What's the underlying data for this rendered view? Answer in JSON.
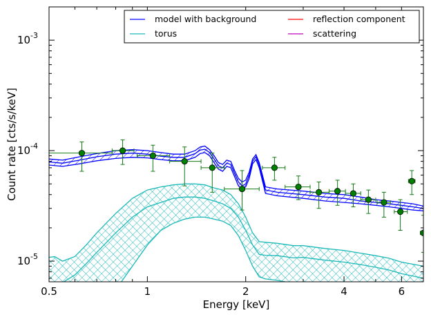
{
  "chart_data": {
    "type": "line",
    "xlabel": "Energy [keV]",
    "ylabel": "Count rate [cts/s/keV]",
    "x_scale": "log",
    "y_scale": "log",
    "xlim": [
      0.5,
      7.0
    ],
    "ylim": [
      6.5e-06,
      0.002
    ],
    "grid": false,
    "legend_position": "top-right",
    "x_ticks": [
      {
        "value": 0.5,
        "label": "0.5"
      },
      {
        "value": 1,
        "label": "1"
      },
      {
        "value": 2,
        "label": "2"
      },
      {
        "value": 4,
        "label": "4"
      },
      {
        "value": 6,
        "label": "6"
      }
    ],
    "y_ticks": [
      {
        "value": 1e-05,
        "base": "10",
        "exp": "-5"
      },
      {
        "value": 0.0001,
        "base": "10",
        "exp": "-4"
      },
      {
        "value": 0.001,
        "base": "10",
        "exp": "-3"
      }
    ],
    "series": [
      {
        "name": "model with background",
        "color": "#0000ff",
        "hatch": "diagonal",
        "x": [
          0.5,
          0.55,
          0.62,
          0.7,
          0.8,
          0.9,
          1.0,
          1.1,
          1.2,
          1.3,
          1.4,
          1.45,
          1.5,
          1.55,
          1.6,
          1.65,
          1.7,
          1.75,
          1.8,
          1.85,
          1.9,
          1.95,
          2.0,
          2.05,
          2.1,
          2.15,
          2.2,
          2.3,
          2.5,
          3.0,
          3.5,
          4.0,
          4.5,
          5.0,
          5.5,
          6.0,
          6.5,
          7.0
        ],
        "upper": [
          8.4e-05,
          8.2e-05,
          8.8e-05,
          9.4e-05,
          0.0001,
          0.000102,
          0.0001,
          9.6e-05,
          9.3e-05,
          9.3e-05,
          0.0001,
          0.000108,
          0.00011,
          0.000102,
          9e-05,
          7.8e-05,
          7.5e-05,
          8.2e-05,
          8e-05,
          6.6e-05,
          5.6e-05,
          5.2e-05,
          5.4e-05,
          6.4e-05,
          8.4e-05,
          9.2e-05,
          7.8e-05,
          4.7e-05,
          4.5e-05,
          4.3e-05,
          4.1e-05,
          4e-05,
          3.8e-05,
          3.6e-05,
          3.5e-05,
          3.4e-05,
          3.3e-05,
          3.15e-05
        ],
        "mid": [
          7.9e-05,
          7.7e-05,
          8.2e-05,
          8.8e-05,
          9.3e-05,
          9.5e-05,
          9.3e-05,
          8.9e-05,
          8.7e-05,
          8.7e-05,
          9.4e-05,
          0.000101,
          0.000103,
          9.6e-05,
          8.4e-05,
          7.3e-05,
          7e-05,
          7.7e-05,
          7.5e-05,
          6.2e-05,
          5.2e-05,
          4.8e-05,
          5e-05,
          6e-05,
          8e-05,
          8.8e-05,
          7.4e-05,
          4.4e-05,
          4.2e-05,
          4e-05,
          3.8e-05,
          3.7e-05,
          3.5e-05,
          3.4e-05,
          3.3e-05,
          3.2e-05,
          3.1e-05,
          3e-05
        ],
        "lower": [
          7.4e-05,
          7.2e-05,
          7.6e-05,
          8.1e-05,
          8.5e-05,
          8.7e-05,
          8.6e-05,
          8.3e-05,
          8.1e-05,
          8.1e-05,
          8.7e-05,
          9.4e-05,
          9.6e-05,
          9e-05,
          7.8e-05,
          6.8e-05,
          6.5e-05,
          7.2e-05,
          7e-05,
          5.8e-05,
          4.8e-05,
          4.5e-05,
          4.7e-05,
          5.6e-05,
          7.6e-05,
          8.3e-05,
          7e-05,
          4.1e-05,
          3.9e-05,
          3.7e-05,
          3.5e-05,
          3.4e-05,
          3.3e-05,
          3.2e-05,
          3.1e-05,
          3e-05,
          2.9e-05,
          2.85e-05
        ]
      },
      {
        "name": "torus",
        "color": "#1ab8b8",
        "hatch": "cross",
        "x": [
          0.5,
          0.52,
          0.55,
          0.6,
          0.65,
          0.7,
          0.8,
          0.9,
          1.0,
          1.1,
          1.2,
          1.3,
          1.4,
          1.5,
          1.6,
          1.7,
          1.8,
          1.9,
          2.0,
          2.1,
          2.2,
          2.3,
          2.5,
          2.8,
          3.0,
          3.5,
          4.0,
          4.5,
          5.0,
          5.5,
          6.0,
          7.0
        ],
        "upper": [
          1.08e-05,
          1.1e-05,
          1e-05,
          1.1e-05,
          1.4e-05,
          1.8e-05,
          2.7e-05,
          3.7e-05,
          4.4e-05,
          4.7e-05,
          4.9e-05,
          5e-05,
          5e-05,
          4.9e-05,
          4.6e-05,
          4.4e-05,
          4e-05,
          3.3e-05,
          2.5e-05,
          1.8e-05,
          1.5e-05,
          1.48e-05,
          1.45e-05,
          1.38e-05,
          1.38e-05,
          1.3e-05,
          1.25e-05,
          1.18e-05,
          1.12e-05,
          1.06e-05,
          9.8e-06,
          9e-06
        ],
        "mid": [
          6.2e-06,
          6.2e-06,
          6.4e-06,
          7.5e-06,
          9.5e-06,
          1.2e-05,
          1.8e-05,
          2.5e-05,
          3.1e-05,
          3.4e-05,
          3.7e-05,
          3.8e-05,
          3.8e-05,
          3.7e-05,
          3.5e-05,
          3.3e-05,
          3e-05,
          2.5e-05,
          1.9e-05,
          1.4e-05,
          1.15e-05,
          1.13e-05,
          1.12e-05,
          1.07e-05,
          1.08e-05,
          1.02e-05,
          9.8e-06,
          9.3e-06,
          8.8e-06,
          8.3e-06,
          7.7e-06,
          7e-06
        ],
        "lower": [
          3e-06,
          3e-06,
          3e-06,
          3e-06,
          3e-06,
          3.4e-06,
          5.5e-06,
          9e-06,
          1.4e-05,
          1.9e-05,
          2.2e-05,
          2.4e-05,
          2.5e-05,
          2.5e-05,
          2.4e-05,
          2.3e-05,
          2.1e-05,
          1.7e-05,
          1.25e-05,
          9e-06,
          7.2e-06,
          6.9e-06,
          6.7e-06,
          6.3e-06,
          6.4e-06,
          6e-06,
          5.8e-06,
          5.6e-06,
          5.4e-06,
          5.1e-06,
          4.8e-06,
          4.5e-06
        ]
      },
      {
        "name": "reflection component",
        "color": "#ff0000"
      },
      {
        "name": "scattering",
        "color": "#bf00bf"
      }
    ],
    "data_points": {
      "color": "#0f7a0f",
      "points": [
        {
          "x": 0.63,
          "y": 9.5e-05,
          "xlo": 0.5,
          "xhi": 0.78,
          "ylo": 6.5e-05,
          "yhi": 0.00012
        },
        {
          "x": 0.84,
          "y": 0.0001,
          "xlo": 0.78,
          "xhi": 0.91,
          "ylo": 7.5e-05,
          "yhi": 0.000125
        },
        {
          "x": 1.04,
          "y": 9e-05,
          "xlo": 0.93,
          "xhi": 1.17,
          "ylo": 6.5e-05,
          "yhi": 0.000112
        },
        {
          "x": 1.3,
          "y": 8e-05,
          "xlo": 1.17,
          "xhi": 1.46,
          "ylo": 4.8e-05,
          "yhi": 0.000108
        },
        {
          "x": 1.58,
          "y": 7e-05,
          "xlo": 1.46,
          "xhi": 1.72,
          "ylo": 4.2e-05,
          "yhi": 9.5e-05
        },
        {
          "x": 1.95,
          "y": 4.5e-05,
          "xlo": 1.72,
          "xhi": 2.2,
          "ylo": 2.9e-05,
          "yhi": 6.6e-05
        },
        {
          "x": 2.45,
          "y": 7e-05,
          "xlo": 2.25,
          "xhi": 2.64,
          "ylo": 5.4e-05,
          "yhi": 8.7e-05
        },
        {
          "x": 2.9,
          "y": 4.7e-05,
          "xlo": 2.64,
          "xhi": 3.15,
          "ylo": 3.6e-05,
          "yhi": 5.9e-05
        },
        {
          "x": 3.35,
          "y": 4.2e-05,
          "xlo": 3.15,
          "xhi": 3.6,
          "ylo": 3e-05,
          "yhi": 5.2e-05
        },
        {
          "x": 3.82,
          "y": 4.3e-05,
          "xlo": 3.6,
          "xhi": 4.04,
          "ylo": 3.2e-05,
          "yhi": 5.4e-05
        },
        {
          "x": 4.27,
          "y": 4.1e-05,
          "xlo": 4.04,
          "xhi": 4.5,
          "ylo": 3.1e-05,
          "yhi": 5e-05
        },
        {
          "x": 4.75,
          "y": 3.6e-05,
          "xlo": 4.5,
          "xhi": 5.0,
          "ylo": 2.7e-05,
          "yhi": 4.4e-05
        },
        {
          "x": 5.3,
          "y": 3.4e-05,
          "xlo": 5.05,
          "xhi": 5.55,
          "ylo": 2.5e-05,
          "yhi": 4.2e-05
        },
        {
          "x": 5.95,
          "y": 2.8e-05,
          "xlo": 5.7,
          "xhi": 6.25,
          "ylo": 1.9e-05,
          "yhi": 3.6e-05
        },
        {
          "x": 6.45,
          "y": 5.3e-05,
          "xlo": 6.3,
          "xhi": 6.6,
          "ylo": 4e-05,
          "yhi": 6.6e-05
        },
        {
          "x": 7.0,
          "y": 1.8e-05,
          "xlo": 6.85,
          "xhi": 7.0,
          "ylo": 1.2e-05,
          "yhi": 2.6e-05
        }
      ]
    }
  }
}
